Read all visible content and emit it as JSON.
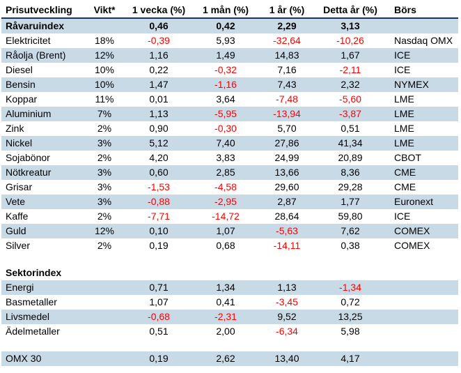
{
  "colors": {
    "stripe": "#c9dae7",
    "negative": "#ff0000",
    "header_border": "#17375e",
    "text": "#000000"
  },
  "table": {
    "columns": [
      "Prisutveckling",
      "Vikt*",
      "1 vecka (%)",
      "1 mån (%)",
      "1 år (%)",
      "Detta år (%)",
      "Börs"
    ],
    "rows": [
      {
        "type": "data",
        "shaded": true,
        "bold": true,
        "cells": [
          "Råvaruindex",
          "",
          "0,46",
          "0,42",
          "2,29",
          "3,13",
          ""
        ]
      },
      {
        "type": "data",
        "shaded": false,
        "cells": [
          "Elektricitet",
          "18%",
          "-0,39",
          "5,93",
          "-32,64",
          "-10,26",
          "Nasdaq OMX"
        ]
      },
      {
        "type": "data",
        "shaded": true,
        "cells": [
          "Råolja (Brent)",
          "12%",
          "1,16",
          "1,49",
          "14,83",
          "1,67",
          "ICE"
        ]
      },
      {
        "type": "data",
        "shaded": false,
        "cells": [
          "Diesel",
          "10%",
          "0,22",
          "-0,32",
          "7,16",
          "-2,11",
          "ICE"
        ]
      },
      {
        "type": "data",
        "shaded": true,
        "cells": [
          "Bensin",
          "10%",
          "1,47",
          "-1,16",
          "7,43",
          "2,32",
          "NYMEX"
        ]
      },
      {
        "type": "data",
        "shaded": false,
        "cells": [
          "Koppar",
          "11%",
          "0,01",
          "3,64",
          "-7,48",
          "-5,60",
          "LME"
        ]
      },
      {
        "type": "data",
        "shaded": true,
        "cells": [
          "Aluminium",
          "7%",
          "1,13",
          "-5,95",
          "-13,94",
          "-3,87",
          "LME"
        ]
      },
      {
        "type": "data",
        "shaded": false,
        "cells": [
          "Zink",
          "2%",
          "0,90",
          "-0,30",
          "5,70",
          "0,51",
          "LME"
        ]
      },
      {
        "type": "data",
        "shaded": true,
        "cells": [
          "Nickel",
          "3%",
          "5,12",
          "7,40",
          "27,86",
          "41,34",
          "LME"
        ]
      },
      {
        "type": "data",
        "shaded": false,
        "cells": [
          "Sojabönor",
          "2%",
          "4,20",
          "3,83",
          "24,99",
          "20,89",
          "CBOT"
        ]
      },
      {
        "type": "data",
        "shaded": true,
        "cells": [
          "Nötkreatur",
          "3%",
          "0,60",
          "2,85",
          "13,66",
          "8,36",
          "CME"
        ]
      },
      {
        "type": "data",
        "shaded": false,
        "cells": [
          "Grisar",
          "3%",
          "-1,53",
          "-4,58",
          "29,60",
          "29,28",
          "CME"
        ]
      },
      {
        "type": "data",
        "shaded": true,
        "cells": [
          "Vete",
          "3%",
          "-0,88",
          "-2,95",
          "2,87",
          "1,77",
          "Euronext"
        ]
      },
      {
        "type": "data",
        "shaded": false,
        "cells": [
          "Kaffe",
          "2%",
          "-7,71",
          "-14,72",
          "28,64",
          "59,80",
          "ICE"
        ]
      },
      {
        "type": "data",
        "shaded": true,
        "cells": [
          "Guld",
          "12%",
          "0,10",
          "1,07",
          "-5,63",
          "7,62",
          "COMEX"
        ]
      },
      {
        "type": "data",
        "shaded": false,
        "cells": [
          "Silver",
          "2%",
          "0,19",
          "0,68",
          "-14,11",
          "0,38",
          "COMEX"
        ]
      },
      {
        "type": "spacer"
      },
      {
        "type": "section",
        "shaded": false,
        "cells": [
          "Sektorindex",
          "",
          "",
          "",
          "",
          "",
          ""
        ]
      },
      {
        "type": "data",
        "shaded": true,
        "cells": [
          "Energi",
          "",
          "0,71",
          "1,34",
          "1,13",
          "-1,34",
          ""
        ]
      },
      {
        "type": "data",
        "shaded": false,
        "cells": [
          "Basmetaller",
          "",
          "1,07",
          "0,41",
          "-3,45",
          "0,72",
          ""
        ]
      },
      {
        "type": "data",
        "shaded": true,
        "cells": [
          "Livsmedel",
          "",
          "-0,68",
          "-2,31",
          "9,52",
          "13,25",
          ""
        ]
      },
      {
        "type": "data",
        "shaded": false,
        "cells": [
          "Ädelmetaller",
          "",
          "0,51",
          "2,00",
          "-6,34",
          "5,98",
          ""
        ]
      },
      {
        "type": "spacer"
      },
      {
        "type": "data",
        "shaded": true,
        "cells": [
          "OMX 30",
          "",
          "0,19",
          "2,62",
          "13,40",
          "4,17",
          ""
        ]
      }
    ]
  }
}
